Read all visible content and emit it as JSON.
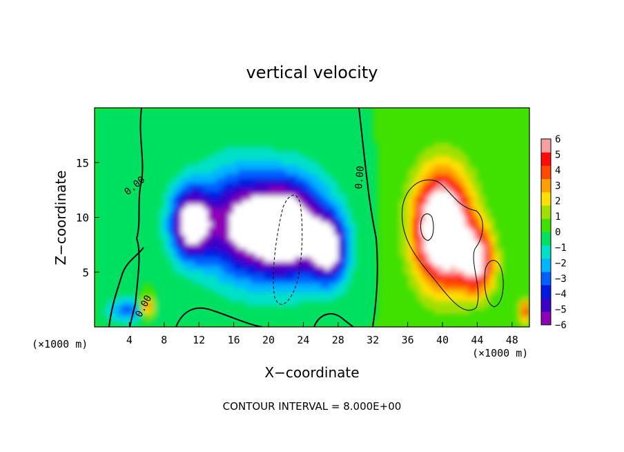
{
  "chart_data": {
    "type": "heatmap",
    "title": "vertical velocity",
    "xlabel": "X−coordinate",
    "ylabel": "Z−coordinate",
    "x_unit": "(×1000 m)",
    "x_unit_right": "(×1000 m)",
    "footer": "CONTOUR INTERVAL = 8.000E+00",
    "xlim": [
      0,
      50
    ],
    "ylim": [
      0,
      20
    ],
    "x_ticks": [
      4,
      8,
      12,
      16,
      20,
      24,
      28,
      32,
      36,
      40,
      44,
      48
    ],
    "x_tick_labels": [
      "4",
      "8",
      "12",
      "16",
      "20",
      "24",
      "28",
      "32",
      "36",
      "40",
      "44",
      "48"
    ],
    "y_ticks": [
      5,
      10,
      15
    ],
    "y_tick_labels": [
      "5",
      "10",
      "15"
    ],
    "colorbar": {
      "min": -6,
      "max": 6,
      "tick_values": [
        6,
        5,
        4,
        3,
        2,
        1,
        0,
        -1,
        -2,
        -3,
        -4,
        -5,
        -6
      ],
      "tick_labels": [
        "6",
        "5",
        "4",
        "3",
        "2",
        "1",
        "0",
        "−1",
        "−2",
        "−3",
        "−4",
        "−5",
        "−6"
      ],
      "colors": [
        "#8e00b8",
        "#3c00c8",
        "#0018e0",
        "#0060ff",
        "#00b4ff",
        "#00e0c8",
        "#00e060",
        "#40e000",
        "#a0e000",
        "#ffe000",
        "#ffa000",
        "#ff4a00",
        "#ff0a0a",
        "#f8a0a0"
      ]
    },
    "contour_labels": [
      "0.00",
      "0.00",
      "0.00"
    ],
    "features": [
      {
        "kind": "downdraft",
        "x": 11,
        "z": 9.5,
        "sx": 2.3,
        "sz": 3.2,
        "amp": -7
      },
      {
        "kind": "downdraft",
        "x": 22,
        "z": 9.0,
        "sx": 4.5,
        "sz": 4.5,
        "amp": -9
      },
      {
        "kind": "downdraft",
        "x": 16,
        "z": 9.5,
        "sx": 4.0,
        "sz": 5.0,
        "amp": -5
      },
      {
        "kind": "downdraft",
        "x": 27,
        "z": 7.0,
        "sx": 2.0,
        "sz": 3.0,
        "amp": -6
      },
      {
        "kind": "downdraft",
        "x": 4,
        "z": 1.5,
        "sx": 2.5,
        "sz": 1.2,
        "amp": -3
      },
      {
        "kind": "updraft",
        "x": 40,
        "z": 9.0,
        "sx": 3.2,
        "sz": 5.0,
        "amp": 10
      },
      {
        "kind": "updraft",
        "x": 44,
        "z": 6.0,
        "sx": 2.0,
        "sz": 3.0,
        "amp": 6
      },
      {
        "kind": "updraft",
        "x": 6,
        "z": 1.8,
        "sx": 0.8,
        "sz": 1.0,
        "amp": 5
      },
      {
        "kind": "updraft",
        "x": 49.5,
        "z": 1.5,
        "sx": 0.8,
        "sz": 1.2,
        "amp": 4
      }
    ]
  }
}
